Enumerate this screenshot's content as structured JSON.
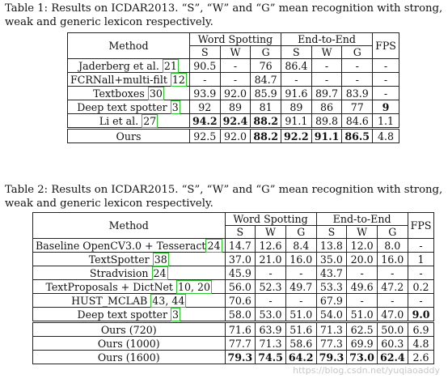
{
  "table1": {
    "caption": "Table 1: Results on ICDAR2013. “S”, “W” and “G” mean recognition with strong, weak and generic lexicon respectively.",
    "header": {
      "method": "Method",
      "group1": "Word Spotting",
      "group2": "End-to-End",
      "fps": "FPS",
      "sub": [
        "S",
        "W",
        "G",
        "S",
        "W",
        "G"
      ]
    },
    "rows": [
      {
        "method": "Jaderberg et al. ",
        "cite": "21",
        "vals": [
          "90.5",
          "-",
          "76",
          "86.4",
          "-",
          "-",
          "-"
        ]
      },
      {
        "method": "FCRNall+multi-filt ",
        "cite": "12",
        "vals": [
          "-",
          "-",
          "84.7",
          "-",
          "-",
          "-",
          "-"
        ]
      },
      {
        "method": "Textboxes ",
        "cite": "30",
        "vals": [
          "93.9",
          "92.0",
          "85.9",
          "91.6",
          "89.7",
          "83.9",
          "-"
        ]
      },
      {
        "method": "Deep text spotter ",
        "cite": "3",
        "vals": [
          "92",
          "89",
          "81",
          "89",
          "86",
          "77",
          "9"
        ]
      },
      {
        "method": "Li et al. ",
        "cite": "27",
        "vals": [
          "94.2",
          "92.4",
          "88.2",
          "91.1",
          "89.8",
          "84.6",
          "1.1"
        ]
      },
      {
        "method": "Ours",
        "cite": "",
        "vals": [
          "92.5",
          "92.0",
          "88.2",
          "92.2",
          "91.1",
          "86.5",
          "4.8"
        ]
      }
    ]
  },
  "table2": {
    "caption": "Table 2: Results on ICDAR2015. “S”, “W” and “G” mean recognition with strong, weak and generic lexicon respectively.",
    "header": {
      "method": "Method",
      "group1": "Word Spotting",
      "group2": "End-to-End",
      "fps": "FPS",
      "sub": [
        "S",
        "W",
        "G",
        "S",
        "W",
        "G"
      ]
    },
    "rows": [
      {
        "method": "Baseline OpenCV3.0 + Tesseract",
        "cite": "24",
        "vals": [
          "14.7",
          "12.6",
          "8.4",
          "13.8",
          "12.0",
          "8.0",
          "-"
        ]
      },
      {
        "method": "TextSpotter ",
        "cite": "38",
        "vals": [
          "37.0",
          "21.0",
          "16.0",
          "35.0",
          "20.0",
          "16.0",
          "1"
        ]
      },
      {
        "method": "Stradvision ",
        "cite": "24",
        "vals": [
          "45.9",
          "-",
          "-",
          "43.7",
          "-",
          "-",
          "-"
        ]
      },
      {
        "method": "TextProposals + DictNet ",
        "cite": "10, 20",
        "vals": [
          "56.0",
          "52.3",
          "49.7",
          "53.3",
          "49.6",
          "47.2",
          "0.2"
        ]
      },
      {
        "method": "HUST_MCLAB ",
        "cite": "43, 44",
        "vals": [
          "70.6",
          "-",
          "-",
          "67.9",
          "-",
          "-",
          "-"
        ]
      },
      {
        "method": "Deep text spotter ",
        "cite": "3",
        "vals": [
          "58.0",
          "53.0",
          "51.0",
          "54.0",
          "51.0",
          "47.0",
          "9.0"
        ]
      },
      {
        "method": "Ours (720)",
        "cite": "",
        "vals": [
          "71.6",
          "63.9",
          "51.6",
          "71.3",
          "62.5",
          "50.0",
          "6.9"
        ]
      },
      {
        "method": "Ours (1000)",
        "cite": "",
        "vals": [
          "77.7",
          "71.3",
          "58.6",
          "77.3",
          "69.9",
          "60.3",
          "4.8"
        ]
      },
      {
        "method": "Ours (1600)",
        "cite": "",
        "vals": [
          "79.3",
          "74.5",
          "64.2",
          "79.3",
          "73.0",
          "62.4",
          "2.6"
        ]
      }
    ]
  },
  "watermark": "https://blog.csdn.net/yuqiaoaddy"
}
